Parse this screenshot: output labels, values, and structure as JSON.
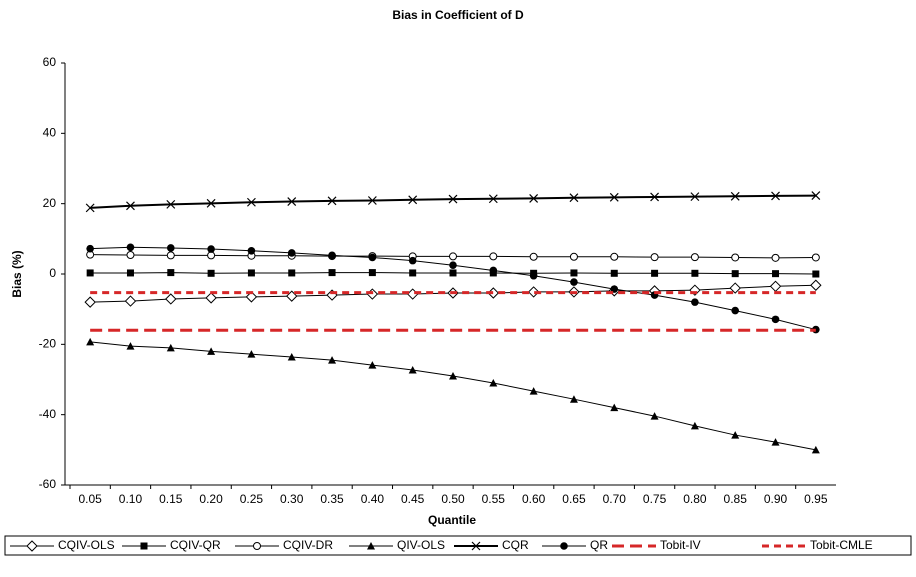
{
  "chart_data": {
    "type": "line",
    "title": "Bias in Coefficient of D",
    "x_label": "Quantile",
    "y_label": "Bias (%)",
    "categories": [
      "0.05",
      "0.10",
      "0.15",
      "0.20",
      "0.25",
      "0.30",
      "0.35",
      "0.40",
      "0.45",
      "0.50",
      "0.55",
      "0.60",
      "0.65",
      "0.70",
      "0.75",
      "0.80",
      "0.85",
      "0.90",
      "0.95"
    ],
    "ylim": [
      -60,
      60
    ],
    "yticks": [
      -60,
      -40,
      -20,
      0,
      20,
      40,
      60
    ],
    "grid": false,
    "legend": "bottom",
    "series": [
      {
        "name": "CQIV-OLS",
        "color": "#000000",
        "marker": "diamond-open",
        "values": [
          -8.0,
          -7.7,
          -7.1,
          -6.8,
          -6.5,
          -6.3,
          -6.0,
          -5.7,
          -5.7,
          -5.4,
          -5.4,
          -5.1,
          -5.1,
          -4.8,
          -4.8,
          -4.6,
          -4.0,
          -3.5,
          -3.2
        ]
      },
      {
        "name": "CQIV-QR",
        "color": "#000000",
        "marker": "square",
        "values": [
          0.3,
          0.3,
          0.4,
          0.2,
          0.3,
          0.3,
          0.4,
          0.4,
          0.3,
          0.3,
          0.3,
          0.2,
          0.3,
          0.2,
          0.2,
          0.2,
          0.1,
          0.1,
          0.0
        ]
      },
      {
        "name": "CQIV-DR",
        "color": "#000000",
        "marker": "circle-open",
        "values": [
          5.5,
          5.4,
          5.3,
          5.3,
          5.2,
          5.2,
          5.1,
          5.1,
          5.0,
          5.0,
          5.0,
          4.9,
          4.9,
          4.9,
          4.8,
          4.8,
          4.7,
          4.6,
          4.7
        ]
      },
      {
        "name": "QIV-OLS",
        "color": "#000000",
        "marker": "triangle",
        "values": [
          -19.3,
          -20.5,
          -21.0,
          -22.0,
          -22.8,
          -23.6,
          -24.5,
          -25.9,
          -27.3,
          -29.0,
          -31.0,
          -33.3,
          -35.6,
          -38.0,
          -40.4,
          -43.2,
          -45.8,
          -47.8,
          -50.0
        ]
      },
      {
        "name": "CQR",
        "color": "#000000",
        "marker": "x",
        "width": 2,
        "values": [
          18.8,
          19.4,
          19.8,
          20.1,
          20.4,
          20.6,
          20.8,
          20.9,
          21.1,
          21.3,
          21.4,
          21.5,
          21.7,
          21.8,
          21.9,
          22.0,
          22.1,
          22.2,
          22.3
        ]
      },
      {
        "name": "QR",
        "color": "#000000",
        "marker": "circle",
        "values": [
          7.2,
          7.6,
          7.4,
          7.1,
          6.6,
          6.0,
          5.3,
          4.7,
          3.8,
          2.5,
          1.0,
          -0.5,
          -2.3,
          -4.3,
          -6.0,
          -8.0,
          -10.4,
          -12.9,
          -15.8
        ]
      },
      {
        "name": "Tobit-IV",
        "color": "#d62728",
        "dash": "12,6",
        "width": 3,
        "values": [
          -16,
          -16,
          -16,
          -16,
          -16,
          -16,
          -16,
          -16,
          -16,
          -16,
          -16,
          -16,
          -16,
          -16,
          -16,
          -16,
          -16,
          -16,
          -16
        ]
      },
      {
        "name": "Tobit-CMLE",
        "color": "#d62728",
        "dash": "7,5",
        "width": 3,
        "values": [
          -5.3,
          -5.3,
          -5.3,
          -5.3,
          -5.3,
          -5.3,
          -5.3,
          -5.3,
          -5.3,
          -5.3,
          -5.3,
          -5.3,
          -5.3,
          -5.3,
          -5.3,
          -5.3,
          -5.3,
          -5.3,
          -5.3
        ]
      }
    ]
  }
}
